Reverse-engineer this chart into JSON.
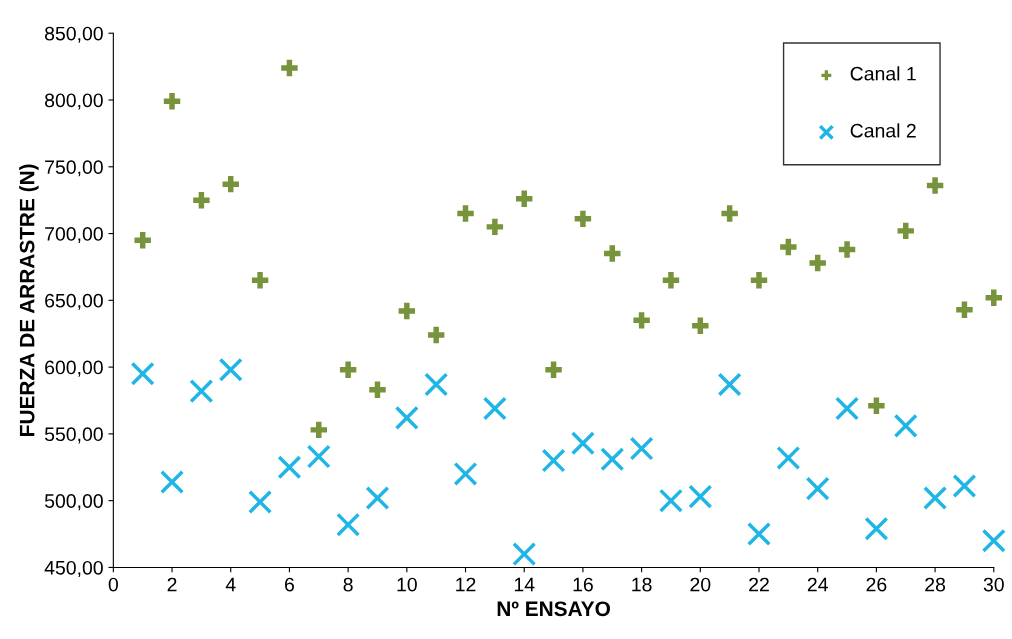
{
  "chart_data": {
    "type": "scatter",
    "xlabel": "Nº ENSAYO",
    "ylabel": "FUERZA DE ARRASTRE (N)",
    "x": [
      1,
      2,
      3,
      4,
      5,
      6,
      7,
      8,
      9,
      10,
      11,
      12,
      13,
      14,
      15,
      16,
      17,
      18,
      19,
      20,
      21,
      22,
      23,
      24,
      25,
      26,
      27,
      28,
      29,
      30
    ],
    "series": [
      {
        "name": "Canal 1",
        "color": "#77933c",
        "values": [
          695,
          799,
          725,
          737,
          665,
          824,
          553,
          598,
          583,
          642,
          624,
          715,
          705,
          726,
          598,
          711,
          685,
          635,
          665,
          631,
          715,
          665,
          690,
          678,
          688,
          571,
          702,
          736,
          643,
          652
        ]
      },
      {
        "name": "Canal 2",
        "color": "#1fb6e6",
        "marker": "cross",
        "values": [
          595,
          514,
          582,
          598,
          499,
          525,
          533,
          482,
          502,
          562,
          587,
          520,
          569,
          460,
          530,
          543,
          531,
          539,
          500,
          503,
          587,
          475,
          532,
          509,
          569,
          479,
          556,
          502,
          511,
          470
        ]
      }
    ],
    "xlim": [
      0,
      30
    ],
    "xticks": [
      0,
      2,
      4,
      6,
      8,
      10,
      12,
      14,
      16,
      18,
      20,
      22,
      24,
      26,
      28,
      30
    ],
    "ylim": [
      450,
      850
    ],
    "yticks": [
      {
        "value": 450,
        "label": "450,00"
      },
      {
        "value": 500,
        "label": "500,00"
      },
      {
        "value": 550,
        "label": "550,00"
      },
      {
        "value": 600,
        "label": "600,00"
      },
      {
        "value": 650,
        "label": "650,00"
      },
      {
        "value": 700,
        "label": "700,00"
      },
      {
        "value": 750,
        "label": "750,00"
      },
      {
        "value": 800,
        "label": "800,00"
      },
      {
        "value": 850,
        "label": "850,00"
      }
    ],
    "grid": false,
    "legend": "top right"
  }
}
